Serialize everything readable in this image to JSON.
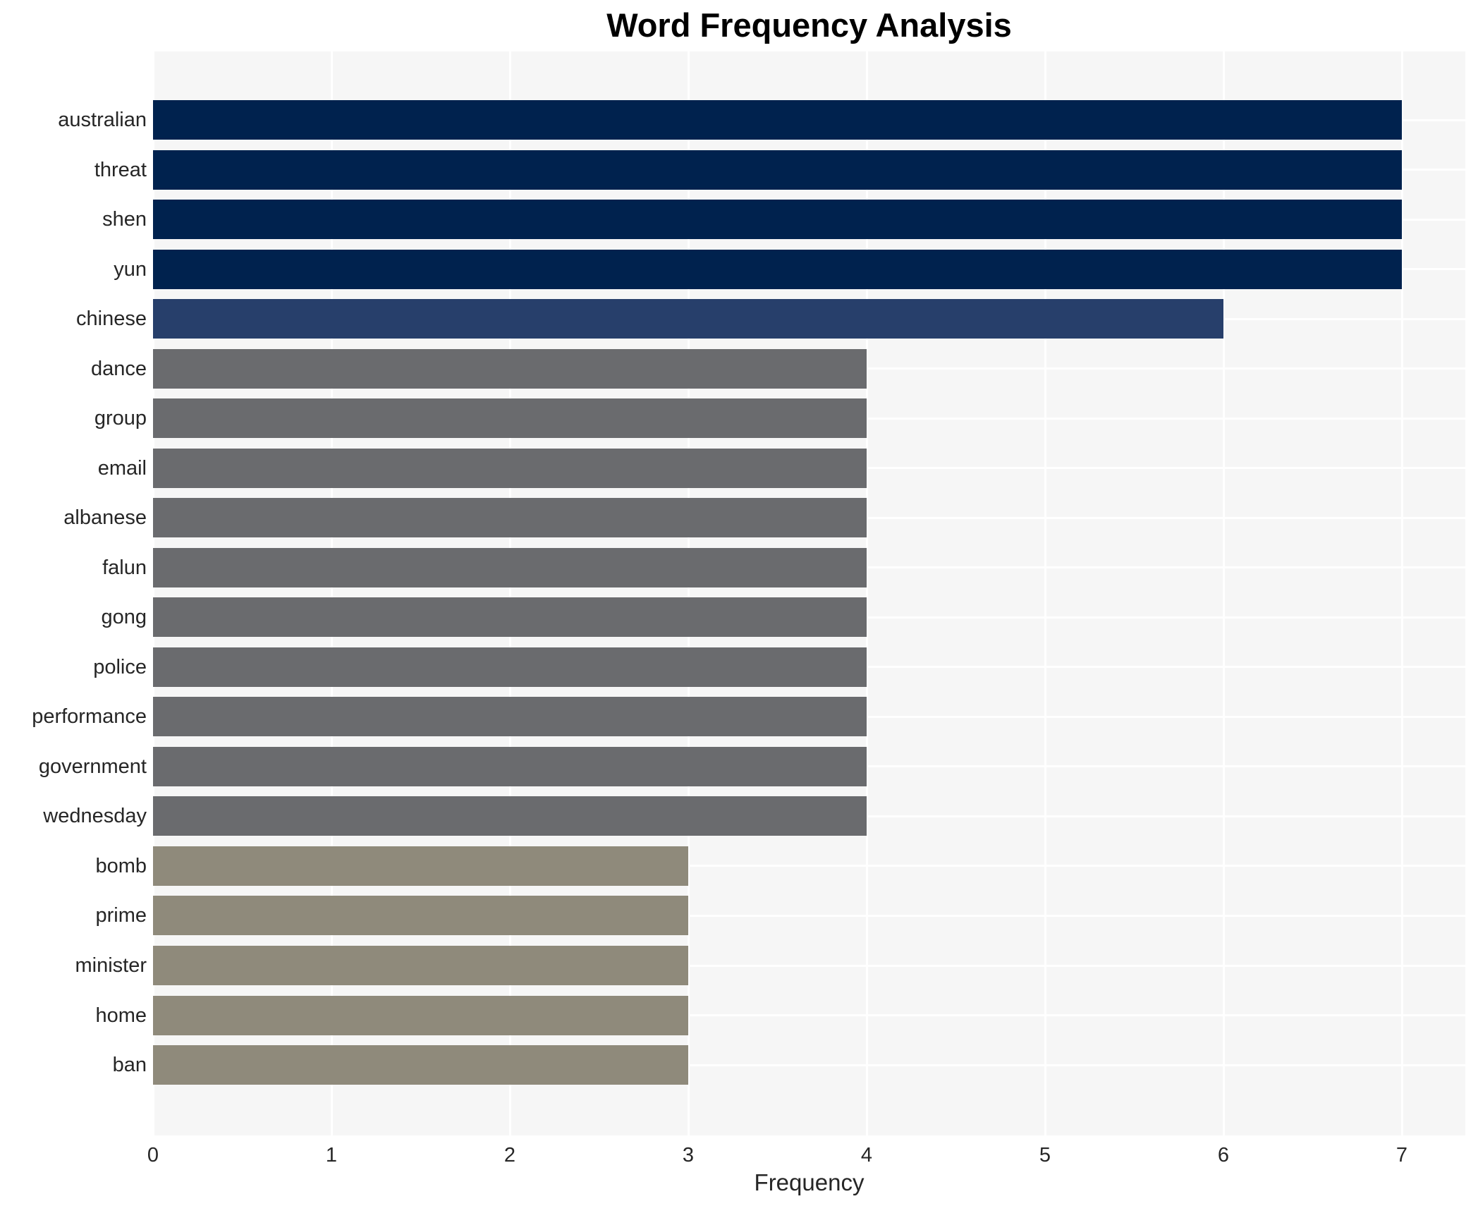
{
  "title": "Word Frequency Analysis",
  "xlabel": "Frequency",
  "colors": {
    "plot_background": "#f6f6f6",
    "figure_background": "#ffffff",
    "gridline": "#ffffff",
    "text": "#262626",
    "title_text": "#000000",
    "bar_rank_top": "#00224e",
    "bar_rank_second": "#273f6b",
    "bar_rank_mid": "#6a6b6e",
    "bar_rank_low": "#8f8a7b"
  },
  "chart_data": {
    "type": "bar",
    "orientation": "horizontal",
    "title": "Word Frequency Analysis",
    "xlabel": "Frequency",
    "ylabel": "",
    "grid": true,
    "legend": false,
    "xlim": [
      0,
      7.36
    ],
    "xticks": [
      0,
      1,
      2,
      3,
      4,
      5,
      6,
      7
    ],
    "categories": [
      "australian",
      "threat",
      "shen",
      "yun",
      "chinese",
      "dance",
      "group",
      "email",
      "albanese",
      "falun",
      "gong",
      "police",
      "performance",
      "government",
      "wednesday",
      "bomb",
      "prime",
      "minister",
      "home",
      "ban"
    ],
    "values": [
      7,
      7,
      7,
      7,
      6,
      4,
      4,
      4,
      4,
      4,
      4,
      4,
      4,
      4,
      4,
      3,
      3,
      3,
      3,
      3
    ],
    "bar_colors": [
      "#00224e",
      "#00224e",
      "#00224e",
      "#00224e",
      "#273f6b",
      "#6a6b6e",
      "#6a6b6e",
      "#6a6b6e",
      "#6a6b6e",
      "#6a6b6e",
      "#6a6b6e",
      "#6a6b6e",
      "#6a6b6e",
      "#6a6b6e",
      "#6a6b6e",
      "#8f8a7b",
      "#8f8a7b",
      "#8f8a7b",
      "#8f8a7b",
      "#8f8a7b"
    ]
  }
}
